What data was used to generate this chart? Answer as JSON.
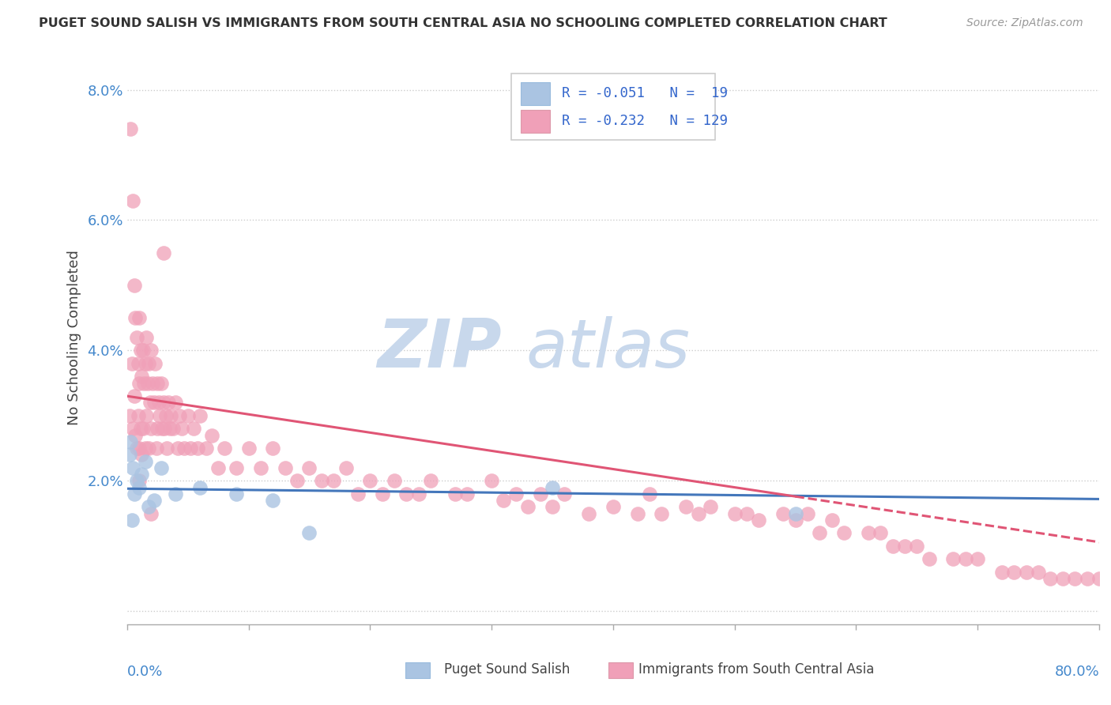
{
  "title": "PUGET SOUND SALISH VS IMMIGRANTS FROM SOUTH CENTRAL ASIA NO SCHOOLING COMPLETED CORRELATION CHART",
  "source": "Source: ZipAtlas.com",
  "ylabel": "No Schooling Completed",
  "xlim": [
    0.0,
    0.8
  ],
  "ylim": [
    -0.002,
    0.086
  ],
  "color_blue": "#aac4e2",
  "color_pink": "#f0a0b8",
  "color_blue_dark": "#4477bb",
  "color_pink_dark": "#e05575",
  "watermark_zip_color": "#c8d8ec",
  "watermark_atlas_color": "#c8d8ec",
  "background_color": "#ffffff",
  "grid_color": "#cccccc",
  "legend_text_color": "#3366cc",
  "axis_text_color": "#4488cc",
  "blue_x": [
    0.002,
    0.003,
    0.004,
    0.005,
    0.006,
    0.008,
    0.01,
    0.012,
    0.015,
    0.018,
    0.022,
    0.028,
    0.04,
    0.06,
    0.09,
    0.12,
    0.15,
    0.35,
    0.55
  ],
  "blue_y": [
    0.024,
    0.026,
    0.014,
    0.022,
    0.018,
    0.02,
    0.019,
    0.021,
    0.023,
    0.016,
    0.017,
    0.022,
    0.018,
    0.019,
    0.018,
    0.017,
    0.012,
    0.019,
    0.015
  ],
  "pink_x": [
    0.002,
    0.003,
    0.004,
    0.005,
    0.005,
    0.006,
    0.006,
    0.007,
    0.007,
    0.008,
    0.008,
    0.009,
    0.009,
    0.01,
    0.01,
    0.01,
    0.011,
    0.011,
    0.012,
    0.012,
    0.013,
    0.013,
    0.014,
    0.015,
    0.015,
    0.016,
    0.016,
    0.017,
    0.018,
    0.018,
    0.019,
    0.02,
    0.02,
    0.021,
    0.022,
    0.023,
    0.024,
    0.025,
    0.025,
    0.026,
    0.027,
    0.028,
    0.029,
    0.03,
    0.031,
    0.032,
    0.033,
    0.034,
    0.035,
    0.036,
    0.038,
    0.04,
    0.042,
    0.043,
    0.045,
    0.047,
    0.05,
    0.052,
    0.055,
    0.058,
    0.06,
    0.065,
    0.07,
    0.075,
    0.08,
    0.09,
    0.1,
    0.11,
    0.12,
    0.13,
    0.14,
    0.15,
    0.16,
    0.17,
    0.18,
    0.19,
    0.2,
    0.21,
    0.22,
    0.23,
    0.24,
    0.25,
    0.27,
    0.28,
    0.3,
    0.31,
    0.32,
    0.33,
    0.34,
    0.35,
    0.36,
    0.38,
    0.4,
    0.42,
    0.43,
    0.44,
    0.46,
    0.47,
    0.48,
    0.5,
    0.51,
    0.52,
    0.54,
    0.55,
    0.56,
    0.57,
    0.58,
    0.59,
    0.61,
    0.62,
    0.63,
    0.64,
    0.65,
    0.66,
    0.68,
    0.69,
    0.7,
    0.72,
    0.73,
    0.74,
    0.75,
    0.76,
    0.77,
    0.78,
    0.79,
    0.8,
    0.01,
    0.02,
    0.03
  ],
  "pink_y": [
    0.03,
    0.074,
    0.038,
    0.063,
    0.028,
    0.05,
    0.033,
    0.045,
    0.027,
    0.042,
    0.025,
    0.038,
    0.03,
    0.045,
    0.035,
    0.025,
    0.04,
    0.028,
    0.036,
    0.024,
    0.04,
    0.028,
    0.035,
    0.038,
    0.025,
    0.042,
    0.03,
    0.035,
    0.038,
    0.025,
    0.032,
    0.04,
    0.028,
    0.035,
    0.032,
    0.038,
    0.025,
    0.035,
    0.028,
    0.032,
    0.03,
    0.035,
    0.028,
    0.032,
    0.028,
    0.03,
    0.025,
    0.032,
    0.028,
    0.03,
    0.028,
    0.032,
    0.025,
    0.03,
    0.028,
    0.025,
    0.03,
    0.025,
    0.028,
    0.025,
    0.03,
    0.025,
    0.027,
    0.022,
    0.025,
    0.022,
    0.025,
    0.022,
    0.025,
    0.022,
    0.02,
    0.022,
    0.02,
    0.02,
    0.022,
    0.018,
    0.02,
    0.018,
    0.02,
    0.018,
    0.018,
    0.02,
    0.018,
    0.018,
    0.02,
    0.017,
    0.018,
    0.016,
    0.018,
    0.016,
    0.018,
    0.015,
    0.016,
    0.015,
    0.018,
    0.015,
    0.016,
    0.015,
    0.016,
    0.015,
    0.015,
    0.014,
    0.015,
    0.014,
    0.015,
    0.012,
    0.014,
    0.012,
    0.012,
    0.012,
    0.01,
    0.01,
    0.01,
    0.008,
    0.008,
    0.008,
    0.008,
    0.006,
    0.006,
    0.006,
    0.006,
    0.005,
    0.005,
    0.005,
    0.005,
    0.005,
    0.02,
    0.015,
    0.055
  ]
}
